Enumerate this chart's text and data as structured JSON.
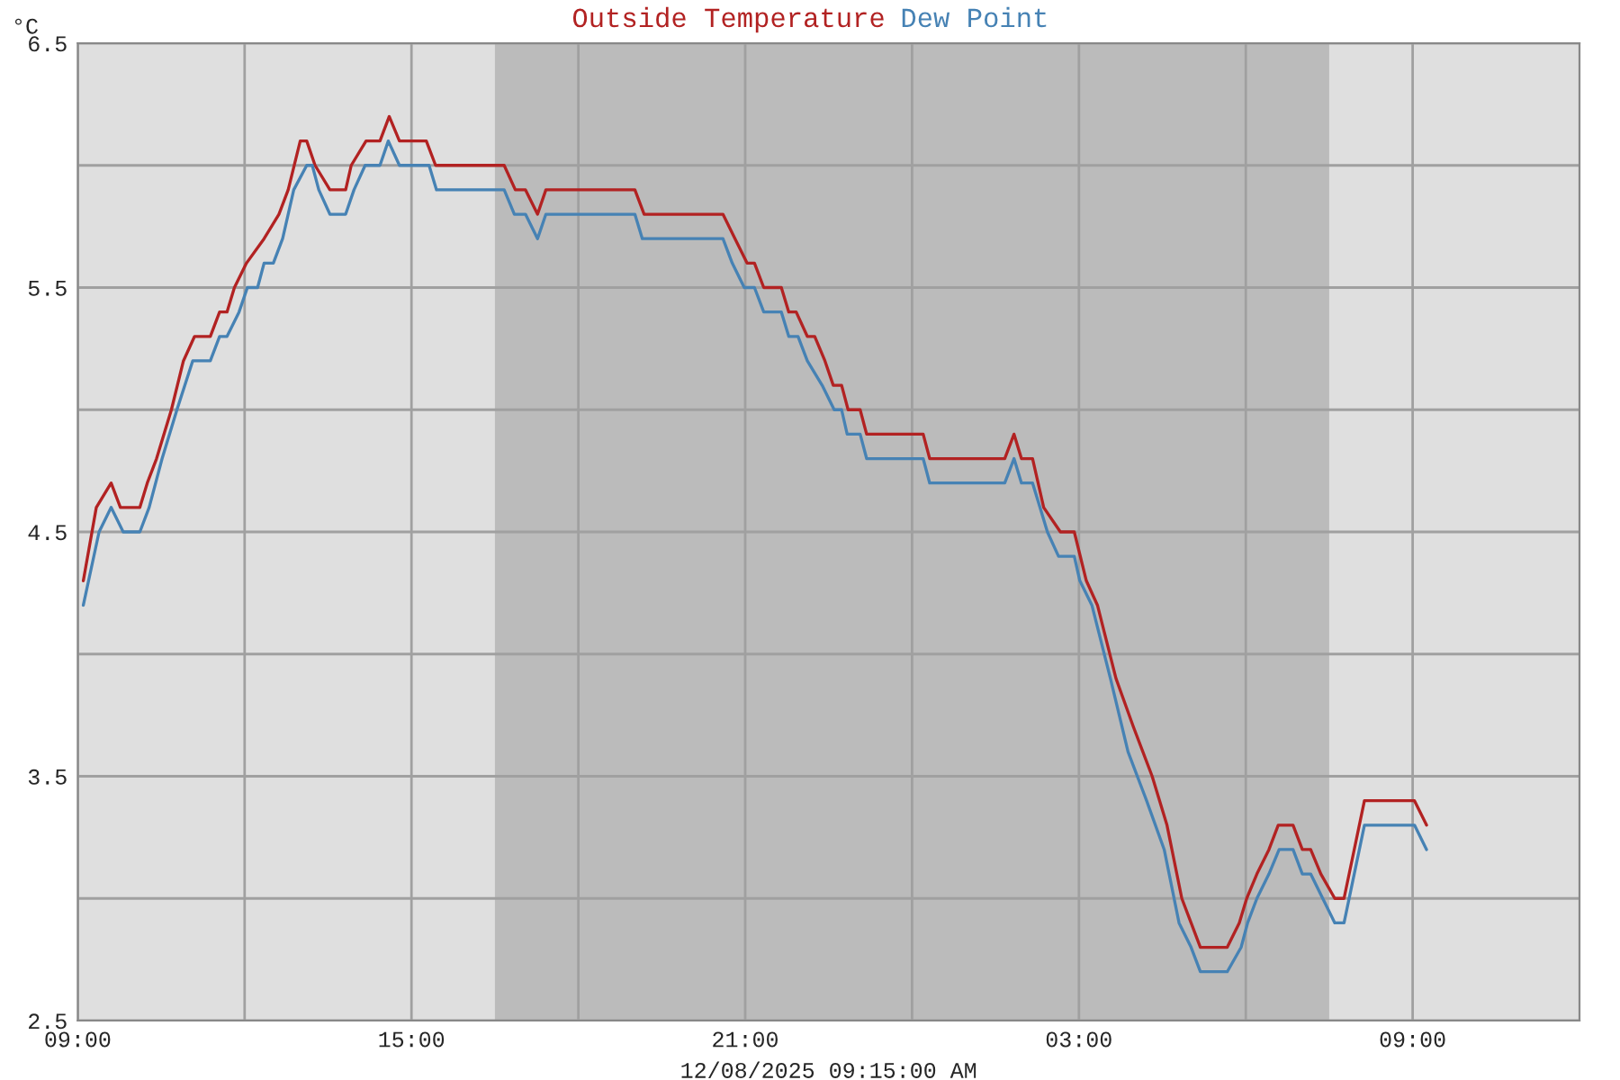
{
  "chart_data": {
    "type": "line",
    "xlabel": "12/08/2025 09:15:00 AM",
    "ylabel": "°C",
    "legend": "top",
    "grid": true,
    "line_style": "solid",
    "xlim": [
      "2025-12-07T09:00",
      "2025-12-08T12:00"
    ],
    "ylim": [
      2.5,
      6.5
    ],
    "xticks": [
      {
        "value": "2025-12-07T09:00",
        "label": "09:00"
      },
      {
        "value": "2025-12-07T12:00",
        "label": null
      },
      {
        "value": "2025-12-07T15:00",
        "label": "15:00"
      },
      {
        "value": "2025-12-07T18:00",
        "label": null
      },
      {
        "value": "2025-12-07T21:00",
        "label": "21:00"
      },
      {
        "value": "2025-12-08T00:00",
        "label": null
      },
      {
        "value": "2025-12-08T03:00",
        "label": "03:00"
      },
      {
        "value": "2025-12-08T06:00",
        "label": null
      },
      {
        "value": "2025-12-08T09:00",
        "label": "09:00"
      }
    ],
    "yticks": [
      2.5,
      {
        "value": 3.0,
        "label": null
      },
      3.5,
      {
        "value": 4.0,
        "label": null
      },
      4.5,
      {
        "value": 5.0,
        "label": null
      },
      5.5,
      {
        "value": 6.0,
        "label": null
      },
      6.5
    ],
    "bands": [
      {
        "axis": "x",
        "from": "2025-12-07T16:30",
        "to": "2025-12-08T07:30",
        "color": "#bbbbbb"
      }
    ],
    "series": [
      {
        "name": "Outside Temperature",
        "color": "#b22222",
        "x": [
          "2025-12-07T09:06",
          "2025-12-07T09:20",
          "2025-12-07T09:36",
          "2025-12-07T09:46",
          "2025-12-07T10:07",
          "2025-12-07T10:15",
          "2025-12-07T10:25",
          "2025-12-07T10:41",
          "2025-12-07T10:54",
          "2025-12-07T11:06",
          "2025-12-07T11:23",
          "2025-12-07T11:33",
          "2025-12-07T11:41",
          "2025-12-07T11:49",
          "2025-12-07T12:02",
          "2025-12-07T12:21",
          "2025-12-07T12:37",
          "2025-12-07T12:47",
          "2025-12-07T13:00",
          "2025-12-07T13:07",
          "2025-12-07T13:16",
          "2025-12-07T13:32",
          "2025-12-07T13:49",
          "2025-12-07T13:55",
          "2025-12-07T14:11",
          "2025-12-07T14:26",
          "2025-12-07T14:36",
          "2025-12-07T14:47",
          "2025-12-07T15:16",
          "2025-12-07T15:26",
          "2025-12-07T16:40",
          "2025-12-07T16:52",
          "2025-12-07T17:03",
          "2025-12-07T17:16",
          "2025-12-07T17:25",
          "2025-12-07T19:01",
          "2025-12-07T19:11",
          "2025-12-07T20:36",
          "2025-12-07T20:49",
          "2025-12-07T21:02",
          "2025-12-07T21:10",
          "2025-12-07T21:20",
          "2025-12-07T21:39",
          "2025-12-07T21:47",
          "2025-12-07T21:55",
          "2025-12-07T22:07",
          "2025-12-07T22:15",
          "2025-12-07T22:26",
          "2025-12-07T22:35",
          "2025-12-07T22:44",
          "2025-12-07T22:51",
          "2025-12-07T23:04",
          "2025-12-07T23:11",
          "2025-12-08T00:12",
          "2025-12-08T00:19",
          "2025-12-08T01:40",
          "2025-12-08T01:50",
          "2025-12-08T01:58",
          "2025-12-08T02:10",
          "2025-12-08T02:22",
          "2025-12-08T02:40",
          "2025-12-08T02:55",
          "2025-12-08T03:08",
          "2025-12-08T03:20",
          "2025-12-08T03:40",
          "2025-12-08T03:59",
          "2025-12-08T04:19",
          "2025-12-08T04:35",
          "2025-12-08T04:51",
          "2025-12-08T05:01",
          "2025-12-08T05:11",
          "2025-12-08T05:40",
          "2025-12-08T05:53",
          "2025-12-08T06:01",
          "2025-12-08T06:12",
          "2025-12-08T06:25",
          "2025-12-08T06:35",
          "2025-12-08T06:51",
          "2025-12-08T07:01",
          "2025-12-08T07:10",
          "2025-12-08T07:21",
          "2025-12-08T07:36",
          "2025-12-08T07:46",
          "2025-12-08T08:08",
          "2025-12-08T09:02",
          "2025-12-08T09:15"
        ],
        "values": [
          4.3,
          4.6,
          4.7,
          4.6,
          4.6,
          4.7,
          4.8,
          5.0,
          5.2,
          5.3,
          5.3,
          5.4,
          5.4,
          5.5,
          5.6,
          5.7,
          5.8,
          5.9,
          6.1,
          6.1,
          6.0,
          5.9,
          5.9,
          6.0,
          6.1,
          6.1,
          6.2,
          6.1,
          6.1,
          6.0,
          6.0,
          5.9,
          5.9,
          5.8,
          5.9,
          5.9,
          5.8,
          5.8,
          5.7,
          5.6,
          5.6,
          5.5,
          5.5,
          5.4,
          5.4,
          5.3,
          5.3,
          5.2,
          5.1,
          5.1,
          5.0,
          5.0,
          4.9,
          4.9,
          4.8,
          4.8,
          4.9,
          4.8,
          4.8,
          4.6,
          4.5,
          4.5,
          4.3,
          4.2,
          3.9,
          3.7,
          3.5,
          3.3,
          3.0,
          2.9,
          2.8,
          2.8,
          2.9,
          3.0,
          3.1,
          3.2,
          3.3,
          3.3,
          3.2,
          3.2,
          3.1,
          3.0,
          3.0,
          3.4,
          3.4,
          3.3
        ]
      },
      {
        "name": "Dew Point",
        "color": "#4682b4",
        "x": [
          "2025-12-07T09:06",
          "2025-12-07T09:23",
          "2025-12-07T09:36",
          "2025-12-07T09:49",
          "2025-12-07T10:07",
          "2025-12-07T10:17",
          "2025-12-07T10:31",
          "2025-12-07T10:47",
          "2025-12-07T11:04",
          "2025-12-07T11:23",
          "2025-12-07T11:33",
          "2025-12-07T11:41",
          "2025-12-07T11:54",
          "2025-12-07T12:03",
          "2025-12-07T12:14",
          "2025-12-07T12:21",
          "2025-12-07T12:31",
          "2025-12-07T12:41",
          "2025-12-07T12:53",
          "2025-12-07T13:07",
          "2025-12-07T13:13",
          "2025-12-07T13:20",
          "2025-12-07T13:32",
          "2025-12-07T13:49",
          "2025-12-07T13:58",
          "2025-12-07T14:10",
          "2025-12-07T14:26",
          "2025-12-07T14:35",
          "2025-12-07T14:47",
          "2025-12-07T15:19",
          "2025-12-07T15:27",
          "2025-12-07T16:40",
          "2025-12-07T16:51",
          "2025-12-07T17:03",
          "2025-12-07T17:16",
          "2025-12-07T17:25",
          "2025-12-07T19:01",
          "2025-12-07T19:09",
          "2025-12-07T20:36",
          "2025-12-07T20:46",
          "2025-12-07T20:59",
          "2025-12-07T21:10",
          "2025-12-07T21:20",
          "2025-12-07T21:39",
          "2025-12-07T21:47",
          "2025-12-07T21:57",
          "2025-12-07T22:07",
          "2025-12-07T22:23",
          "2025-12-07T22:36",
          "2025-12-07T22:44",
          "2025-12-07T22:50",
          "2025-12-07T23:04",
          "2025-12-07T23:11",
          "2025-12-08T00:12",
          "2025-12-08T00:19",
          "2025-12-08T01:40",
          "2025-12-08T01:50",
          "2025-12-08T01:58",
          "2025-12-08T02:10",
          "2025-12-08T02:18",
          "2025-12-08T02:26",
          "2025-12-08T02:38",
          "2025-12-08T02:55",
          "2025-12-08T03:01",
          "2025-12-08T03:14",
          "2025-12-08T03:34",
          "2025-12-08T03:53",
          "2025-12-08T04:13",
          "2025-12-08T04:32",
          "2025-12-08T04:48",
          "2025-12-08T05:01",
          "2025-12-08T05:11",
          "2025-12-08T05:40",
          "2025-12-08T05:55",
          "2025-12-08T06:02",
          "2025-12-08T06:12",
          "2025-12-08T06:25",
          "2025-12-08T06:36",
          "2025-12-08T06:51",
          "2025-12-08T07:01",
          "2025-12-08T07:10",
          "2025-12-08T07:23",
          "2025-12-08T07:36",
          "2025-12-08T07:46",
          "2025-12-08T08:08",
          "2025-12-08T09:02",
          "2025-12-08T09:15"
        ],
        "values": [
          4.2,
          4.5,
          4.6,
          4.5,
          4.5,
          4.6,
          4.8,
          5.0,
          5.2,
          5.2,
          5.3,
          5.3,
          5.4,
          5.5,
          5.5,
          5.6,
          5.6,
          5.7,
          5.9,
          6.0,
          6.0,
          5.9,
          5.8,
          5.8,
          5.9,
          6.0,
          6.0,
          6.1,
          6.0,
          6.0,
          5.9,
          5.9,
          5.8,
          5.8,
          5.7,
          5.8,
          5.8,
          5.7,
          5.7,
          5.6,
          5.5,
          5.5,
          5.4,
          5.4,
          5.3,
          5.3,
          5.2,
          5.1,
          5.0,
          5.0,
          4.9,
          4.9,
          4.8,
          4.8,
          4.7,
          4.7,
          4.8,
          4.7,
          4.7,
          4.6,
          4.5,
          4.4,
          4.4,
          4.3,
          4.2,
          3.9,
          3.6,
          3.4,
          3.2,
          2.9,
          2.8,
          2.7,
          2.7,
          2.8,
          2.9,
          3.0,
          3.1,
          3.2,
          3.2,
          3.1,
          3.1,
          3.0,
          2.9,
          2.9,
          3.3,
          3.3,
          3.2
        ]
      }
    ]
  }
}
